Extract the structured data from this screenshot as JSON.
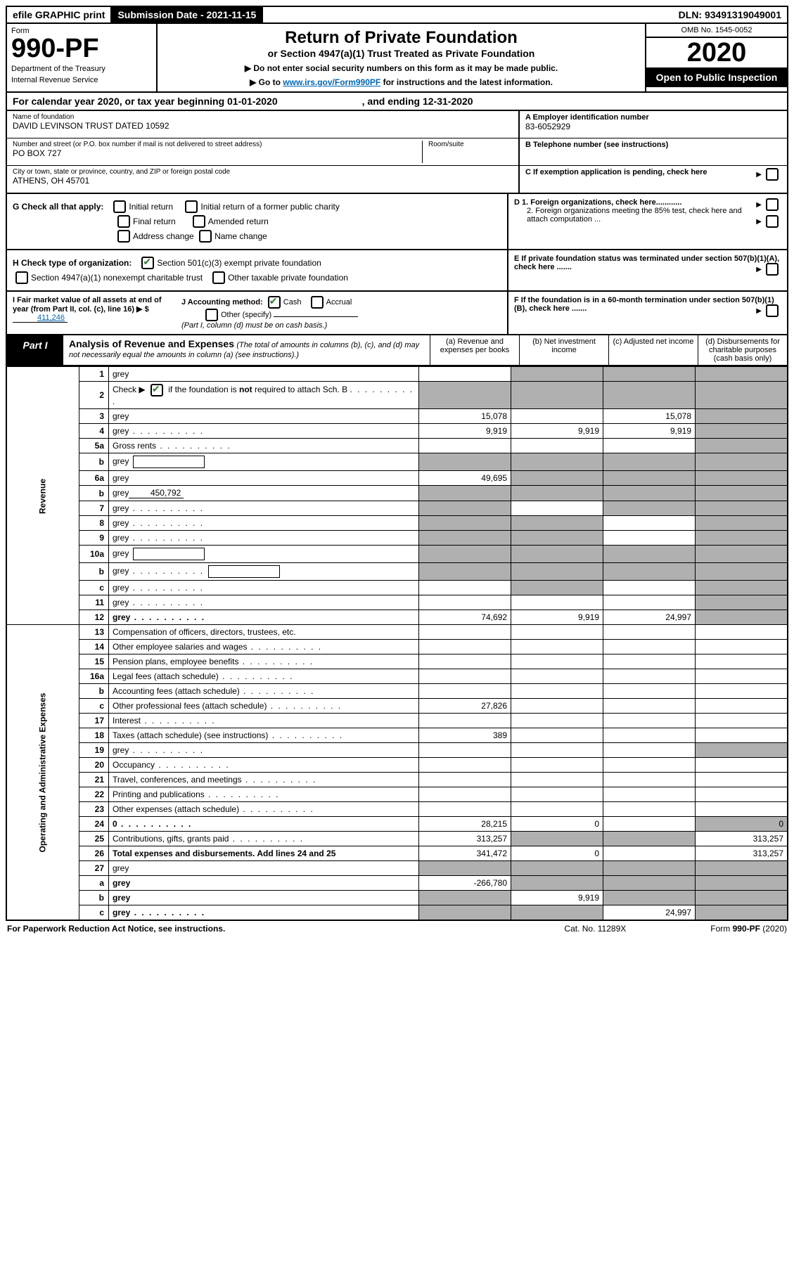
{
  "top": {
    "efile": "efile GRAPHIC print",
    "subdate_label": "Submission Date - 2021-11-15",
    "dln": "DLN: 93491319049001"
  },
  "header": {
    "form_label": "Form",
    "form_num": "990-PF",
    "dept": "Department of the Treasury",
    "irs": "Internal Revenue Service",
    "title": "Return of Private Foundation",
    "subtitle": "or Section 4947(a)(1) Trust Treated as Private Foundation",
    "note1": "▶ Do not enter social security numbers on this form as it may be made public.",
    "note2_pre": "▶ Go to ",
    "note2_link": "www.irs.gov/Form990PF",
    "note2_post": " for instructions and the latest information.",
    "omb": "OMB No. 1545-0052",
    "year": "2020",
    "open": "Open to Public Inspection"
  },
  "cal": {
    "text": "For calendar year 2020, or tax year beginning 01-01-2020",
    "ending": ", and ending 12-31-2020"
  },
  "info": {
    "name_label": "Name of foundation",
    "name": "DAVID LEVINSON TRUST DATED 10592",
    "addr_label": "Number and street (or P.O. box number if mail is not delivered to street address)",
    "addr": "PO BOX 727",
    "room_label": "Room/suite",
    "city_label": "City or town, state or province, country, and ZIP or foreign postal code",
    "city": "ATHENS, OH  45701",
    "a_label": "A Employer identification number",
    "a_val": "83-6052929",
    "b_label": "B Telephone number (see instructions)",
    "c_label": "C If exemption application is pending, check here"
  },
  "checks": {
    "g": "G Check all that apply:",
    "g1": "Initial return",
    "g2": "Initial return of a former public charity",
    "g3": "Final return",
    "g4": "Amended return",
    "g5": "Address change",
    "g6": "Name change",
    "h": "H Check type of organization:",
    "h1": "Section 501(c)(3) exempt private foundation",
    "h2": "Section 4947(a)(1) nonexempt charitable trust",
    "h3": "Other taxable private foundation",
    "i": "I Fair market value of all assets at end of year (from Part II, col. (c), line 16) ▶ $",
    "i_val": "411,246",
    "j": "J Accounting method:",
    "j1": "Cash",
    "j2": "Accrual",
    "j3": "Other (specify)",
    "j_note": "(Part I, column (d) must be on cash basis.)",
    "d": "D 1. Foreign organizations, check here............",
    "d2": "2. Foreign organizations meeting the 85% test, check here and attach computation ...",
    "e": "E  If private foundation status was terminated under section 507(b)(1)(A), check here .......",
    "f": "F  If the foundation is in a 60-month termination under section 507(b)(1)(B), check here ......."
  },
  "part1": {
    "label": "Part I",
    "title": "Analysis of Revenue and Expenses",
    "note": "(The total of amounts in columns (b), (c), and (d) may not necessarily equal the amounts in column (a) (see instructions).)",
    "col_a": "(a)   Revenue and expenses per books",
    "col_b": "(b)   Net investment income",
    "col_c": "(c)   Adjusted net income",
    "col_d": "(d)   Disbursements for charitable purposes (cash basis only)"
  },
  "side": {
    "rev": "Revenue",
    "exp": "Operating and Administrative Expenses"
  },
  "rows": [
    {
      "n": "1",
      "d": "grey",
      "a": "",
      "b": "grey",
      "c": "grey"
    },
    {
      "n": "2",
      "d": "grey",
      "dots": true,
      "a": "grey",
      "b": "grey",
      "c": "grey",
      "checked": true
    },
    {
      "n": "3",
      "d": "grey",
      "a": "15,078",
      "c": "15,078"
    },
    {
      "n": "4",
      "d": "grey",
      "dots": true,
      "a": "9,919",
      "b": "9,919",
      "c": "9,919"
    },
    {
      "n": "5a",
      "d": "Gross rents",
      "dots": true,
      "d_": "grey"
    },
    {
      "n": "b",
      "d": "grey",
      "inline": true,
      "a": "grey",
      "b": "grey",
      "c": "grey"
    },
    {
      "n": "6a",
      "d": "grey",
      "a": "49,695",
      "b": "grey",
      "c": "grey"
    },
    {
      "n": "b",
      "d": "grey",
      "uval": "450,792",
      "a": "grey",
      "b": "grey",
      "c": "grey"
    },
    {
      "n": "7",
      "d": "grey",
      "dots": true,
      "a": "grey",
      "c": "grey"
    },
    {
      "n": "8",
      "d": "grey",
      "dots": true,
      "a": "grey",
      "b": "grey"
    },
    {
      "n": "9",
      "d": "grey",
      "dots": true,
      "a": "grey",
      "b": "grey"
    },
    {
      "n": "10a",
      "d": "grey",
      "inline": true,
      "a": "grey",
      "b": "grey",
      "c": "grey"
    },
    {
      "n": "b",
      "d": "grey",
      "dots": true,
      "inline": true,
      "a": "grey",
      "b": "grey",
      "c": "grey"
    },
    {
      "n": "c",
      "d": "grey",
      "dots": true,
      "a": "",
      "b": "grey"
    },
    {
      "n": "11",
      "d": "grey",
      "dots": true
    },
    {
      "n": "12",
      "d": "grey",
      "dots": true,
      "bold": true,
      "a": "74,692",
      "b": "9,919",
      "c": "24,997"
    },
    {
      "n": "13",
      "d": "Compensation of officers, directors, trustees, etc."
    },
    {
      "n": "14",
      "d": "Other employee salaries and wages",
      "dots": true
    },
    {
      "n": "15",
      "d": "Pension plans, employee benefits",
      "dots": true
    },
    {
      "n": "16a",
      "d": "Legal fees (attach schedule)",
      "dots": true
    },
    {
      "n": "b",
      "d": "Accounting fees (attach schedule)",
      "dots": true
    },
    {
      "n": "c",
      "d": "Other professional fees (attach schedule)",
      "dots": true,
      "a": "27,826"
    },
    {
      "n": "17",
      "d": "Interest",
      "dots": true
    },
    {
      "n": "18",
      "d": "Taxes (attach schedule) (see instructions)",
      "dots": true,
      "a": "389"
    },
    {
      "n": "19",
      "d": "grey",
      "dots": true
    },
    {
      "n": "20",
      "d": "Occupancy",
      "dots": true
    },
    {
      "n": "21",
      "d": "Travel, conferences, and meetings",
      "dots": true
    },
    {
      "n": "22",
      "d": "Printing and publications",
      "dots": true
    },
    {
      "n": "23",
      "d": "Other expenses (attach schedule)",
      "dots": true
    },
    {
      "n": "24",
      "d": "0",
      "dots": true,
      "bold": true,
      "a": "28,215",
      "b": "0"
    },
    {
      "n": "25",
      "d": "Contributions, gifts, grants paid",
      "dots": true,
      "a": "313,257",
      "b": "grey",
      "c": "grey",
      "dv": "313,257"
    },
    {
      "n": "26",
      "d": "Total expenses and disbursements. Add lines 24 and 25",
      "bold": true,
      "a": "341,472",
      "b": "0",
      "dv": "313,257"
    },
    {
      "n": "27",
      "d": "grey",
      "a": "grey",
      "b": "grey",
      "c": "grey"
    },
    {
      "n": "a",
      "d": "grey",
      "bold": true,
      "a": "-266,780",
      "b": "grey",
      "c": "grey"
    },
    {
      "n": "b",
      "d": "grey",
      "bold": true,
      "a": "grey",
      "b": "9,919",
      "c": "grey"
    },
    {
      "n": "c",
      "d": "grey",
      "dots": true,
      "bold": true,
      "a": "grey",
      "b": "grey",
      "c": "24,997"
    }
  ],
  "footer": {
    "left": "For Paperwork Reduction Act Notice, see instructions.",
    "mid": "Cat. No. 11289X",
    "right": "Form 990-PF (2020)"
  }
}
